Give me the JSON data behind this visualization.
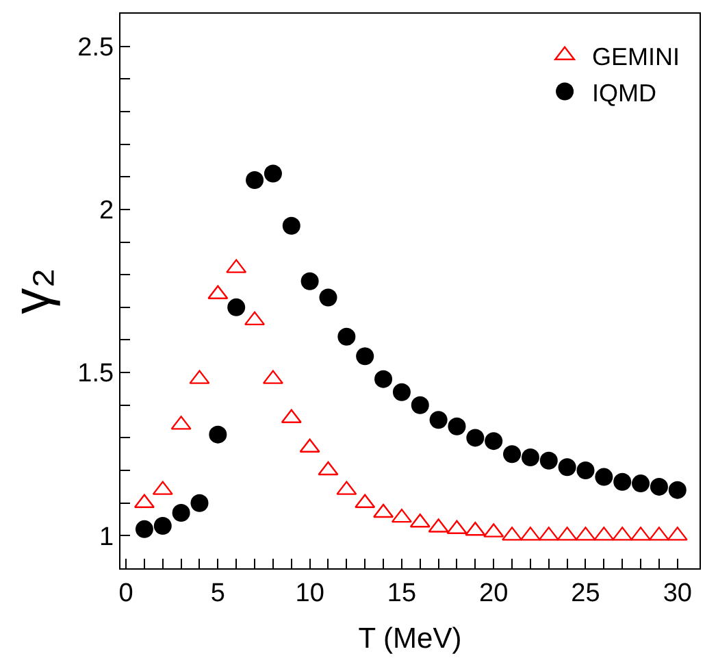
{
  "chart_data": {
    "type": "scatter",
    "xlabel": "T (MeV)",
    "ylabel": "γ₂",
    "x": [
      1,
      2,
      3,
      4,
      5,
      6,
      7,
      8,
      9,
      10,
      11,
      12,
      13,
      14,
      15,
      16,
      17,
      18,
      19,
      20,
      21,
      22,
      23,
      24,
      25,
      26,
      27,
      28,
      29,
      30
    ],
    "series": [
      {
        "name": "GEMINI",
        "color": "#ff0000",
        "marker": "triangle",
        "values": [
          1.1,
          1.14,
          1.34,
          1.48,
          1.74,
          1.82,
          1.66,
          1.48,
          1.36,
          1.27,
          1.2,
          1.14,
          1.1,
          1.07,
          1.055,
          1.04,
          1.025,
          1.02,
          1.015,
          1.01,
          1.0,
          1.0,
          1.0,
          1.0,
          1.0,
          1.0,
          1.0,
          1.0,
          1.0,
          1.0
        ]
      },
      {
        "name": "IQMD",
        "color": "#000000",
        "marker": "circle",
        "values": [
          1.02,
          1.03,
          1.07,
          1.1,
          1.31,
          1.7,
          2.09,
          2.11,
          1.95,
          1.78,
          1.73,
          1.61,
          1.55,
          1.48,
          1.44,
          1.4,
          1.355,
          1.335,
          1.3,
          1.29,
          1.25,
          1.24,
          1.23,
          1.21,
          1.2,
          1.18,
          1.165,
          1.16,
          1.15,
          1.14
        ]
      }
    ],
    "xlim": [
      -0.3,
      31.2
    ],
    "xticks": [
      0,
      {
        "value": 1,
        "label": null
      },
      {
        "value": 2,
        "label": null
      },
      {
        "value": 3,
        "label": null
      },
      {
        "value": 4,
        "label": null
      },
      5,
      {
        "value": 6,
        "label": null
      },
      {
        "value": 7,
        "label": null
      },
      {
        "value": 8,
        "label": null
      },
      {
        "value": 9,
        "label": null
      },
      10,
      {
        "value": 11,
        "label": null
      },
      {
        "value": 12,
        "label": null
      },
      {
        "value": 13,
        "label": null
      },
      {
        "value": 14,
        "label": null
      },
      15,
      {
        "value": 16,
        "label": null
      },
      {
        "value": 17,
        "label": null
      },
      {
        "value": 18,
        "label": null
      },
      {
        "value": 19,
        "label": null
      },
      20,
      {
        "value": 21,
        "label": null
      },
      {
        "value": 22,
        "label": null
      },
      {
        "value": 23,
        "label": null
      },
      {
        "value": 24,
        "label": null
      },
      25,
      {
        "value": 26,
        "label": null
      },
      {
        "value": 27,
        "label": null
      },
      {
        "value": 28,
        "label": null
      },
      {
        "value": 29,
        "label": null
      },
      30
    ],
    "ylim": [
      0.9,
      2.6
    ],
    "yticks": [
      1,
      {
        "value": 1.1,
        "label": null
      },
      {
        "value": 1.2,
        "label": null
      },
      {
        "value": 1.3,
        "label": null
      },
      {
        "value": 1.4,
        "label": null
      },
      1.5,
      {
        "value": 1.6,
        "label": null
      },
      {
        "value": 1.7,
        "label": null
      },
      {
        "value": 1.8,
        "label": null
      },
      {
        "value": 1.9,
        "label": null
      },
      2,
      {
        "value": 2.1,
        "label": null
      },
      {
        "value": 2.2,
        "label": null
      },
      {
        "value": 2.3,
        "label": null
      },
      {
        "value": 2.4,
        "label": null
      },
      2.5
    ],
    "legend": "top right"
  }
}
